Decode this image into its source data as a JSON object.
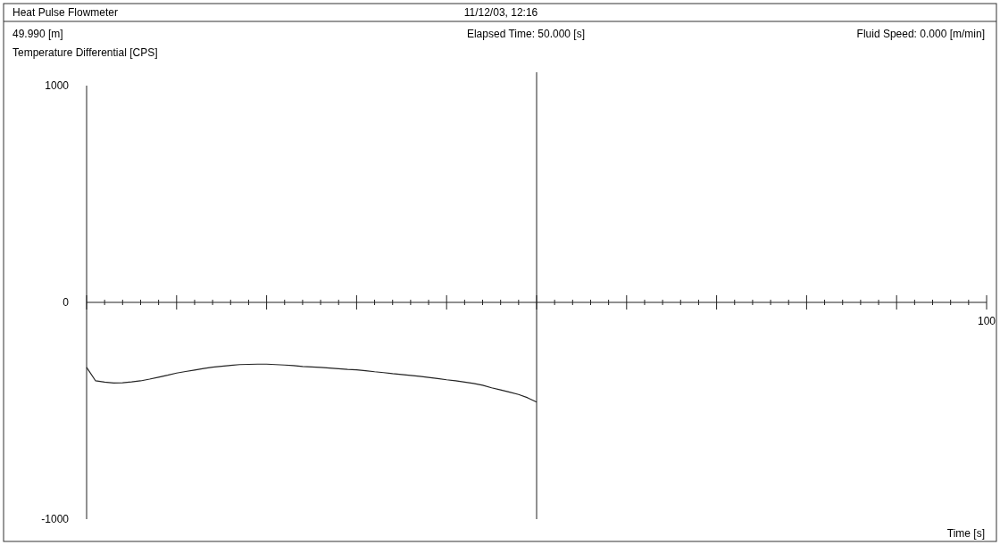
{
  "chart_data": {
    "type": "line",
    "title": "Heat Pulse Flowmeter",
    "subtitle": "11/12/03, 12:16",
    "ylabel": "Temperature Differential [CPS]",
    "xlabel": "Time [s]",
    "annotations": [
      "49.990 [m]",
      "Fluid Speed: 0.000 [m/min]"
    ],
    "categories": [
      null,
      null,
      null,
      null,
      null,
      null,
      null,
      null,
      null,
      null,
      null,
      null,
      null,
      null,
      null,
      null,
      null,
      null,
      null,
      null,
      null,
      null,
      null,
      null,
      null,
      null,
      null,
      null,
      null,
      null,
      null,
      null,
      null,
      null,
      null,
      null,
      null,
      null,
      null,
      null,
      null,
      null,
      null,
      null,
      null,
      null,
      null,
      null,
      null,
      null,
      null,
      null,
      null,
      null,
      null,
      null,
      null,
      null,
      null,
      null,
      null,
      null,
      null,
      null,
      null,
      null,
      null,
      null,
      null,
      null,
      null,
      null,
      null,
      null,
      null,
      null,
      null,
      null,
      null,
      null,
      null,
      null,
      null,
      null,
      null,
      null,
      null,
      null,
      null,
      null,
      null,
      null,
      null,
      null,
      null,
      null,
      null,
      null,
      null,
      null,
      "100"
    ],
    "series": [
      {
        "color": "#222222",
        "values": [
          -300,
          -362,
          -368,
          -372,
          -371,
          -367,
          -362,
          -354,
          -345,
          -336,
          -326,
          -319,
          -312,
          -305,
          -299,
          -295,
          -291,
          -287,
          -286,
          -285,
          -285,
          -287,
          -289,
          -292,
          -296,
          -298,
          -300,
          -303,
          -306,
          -309,
          -311,
          -315,
          -320,
          -324,
          -329,
          -333,
          -337,
          -341,
          -346,
          -351,
          -357,
          -362,
          -368,
          -374,
          -382,
          -394,
          -404,
          -414,
          -425,
          -440,
          -460,
          null,
          null,
          null,
          null,
          null,
          null,
          null,
          null,
          null,
          null,
          null,
          null,
          null,
          null,
          null,
          null,
          null,
          null,
          null,
          null,
          null,
          null,
          null,
          null,
          null,
          null,
          null,
          null,
          null,
          null,
          null,
          null,
          null,
          null,
          null,
          null,
          null,
          null,
          null,
          null,
          null,
          null,
          null,
          null,
          null,
          null,
          null,
          null,
          null,
          null
        ]
      }
    ],
    "ylim": [
      -1000,
      1000
    ],
    "yticks": [
      -1000,
      0,
      1000
    ],
    "ref_lines": [
      {
        "axis": "x",
        "label": "Elapsed Time: 50.000 [s]",
        "color": "#222222"
      }
    ],
    "line_style": "solid"
  }
}
